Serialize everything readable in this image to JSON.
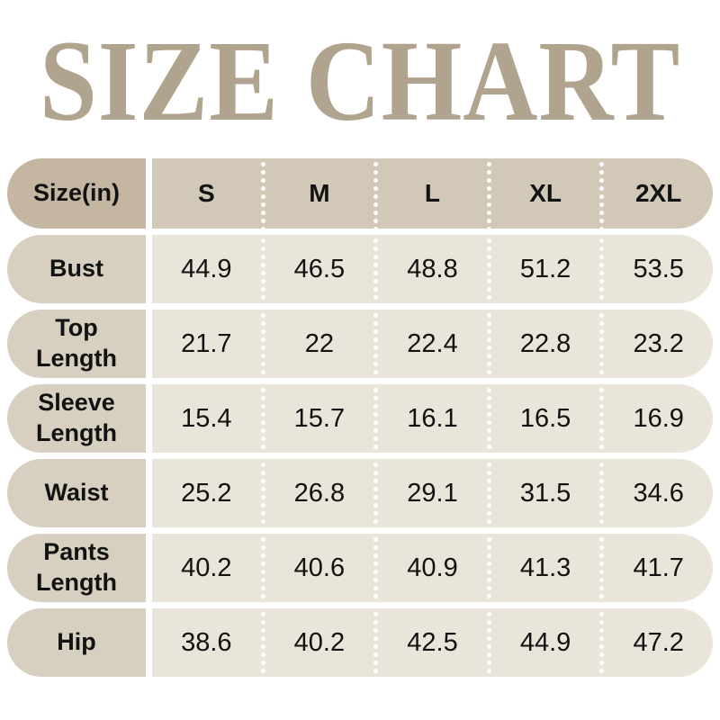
{
  "title": "SIZE CHART",
  "colors": {
    "title": "#b1a48e",
    "header-label-bg": "#c4b6a0",
    "header-values-bg": "#d1c8b7",
    "row-label-bg": "#d7cfc0",
    "row-values-bg": "#eae5da",
    "text": "#121212",
    "dot": "#ffffff",
    "page-bg": "#ffffff"
  },
  "table": {
    "header": {
      "label": "Size(in)",
      "sizes": [
        "S",
        "M",
        "L",
        "XL",
        "2XL"
      ]
    },
    "rows": [
      {
        "label": "Bust",
        "values": [
          "44.9",
          "46.5",
          "48.8",
          "51.2",
          "53.5"
        ]
      },
      {
        "label": "Top Length",
        "values": [
          "21.7",
          "22",
          "22.4",
          "22.8",
          "23.2"
        ]
      },
      {
        "label": "Sleeve Length",
        "values": [
          "15.4",
          "15.7",
          "16.1",
          "16.5",
          "16.9"
        ]
      },
      {
        "label": "Waist",
        "values": [
          "25.2",
          "26.8",
          "29.1",
          "31.5",
          "34.6"
        ]
      },
      {
        "label": "Pants Length",
        "values": [
          "40.2",
          "40.6",
          "40.9",
          "41.3",
          "41.7"
        ]
      },
      {
        "label": "Hip",
        "values": [
          "38.6",
          "40.2",
          "42.5",
          "44.9",
          "47.2"
        ]
      }
    ]
  },
  "chart_data": {
    "type": "table",
    "title": "SIZE CHART",
    "unit": "inches",
    "columns": [
      "Size(in)",
      "S",
      "M",
      "L",
      "XL",
      "2XL"
    ],
    "rows": [
      [
        "Bust",
        44.9,
        46.5,
        48.8,
        51.2,
        53.5
      ],
      [
        "Top Length",
        21.7,
        22,
        22.4,
        22.8,
        23.2
      ],
      [
        "Sleeve Length",
        15.4,
        15.7,
        16.1,
        16.5,
        16.9
      ],
      [
        "Waist",
        25.2,
        26.8,
        29.1,
        31.5,
        34.6
      ],
      [
        "Pants Length",
        40.2,
        40.6,
        40.9,
        41.3,
        41.7
      ],
      [
        "Hip",
        38.6,
        40.2,
        42.5,
        44.9,
        47.2
      ]
    ]
  }
}
